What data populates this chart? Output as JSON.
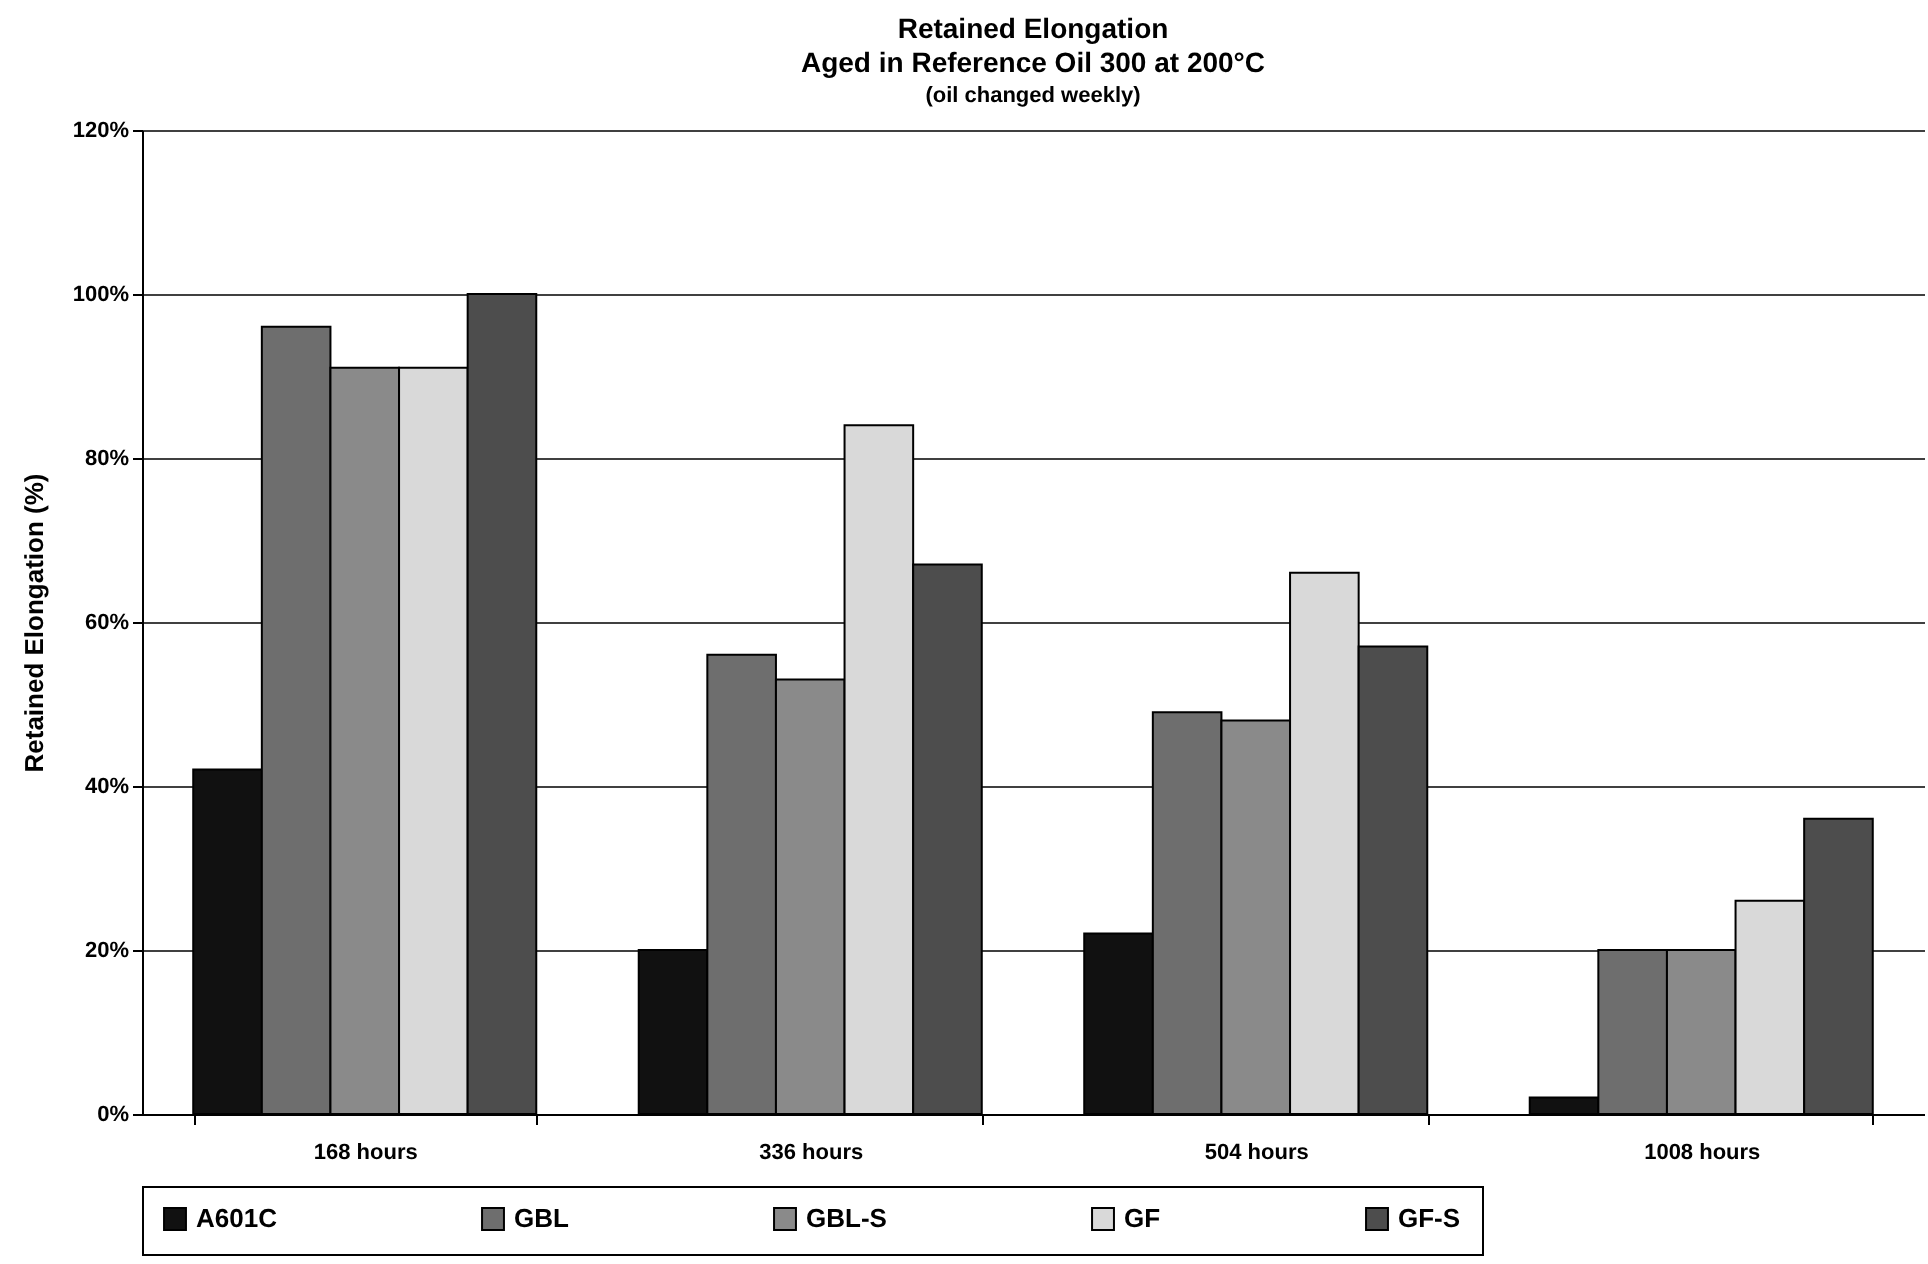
{
  "chart_data": {
    "type": "bar",
    "title": "Retained Elongation\nAged in Reference Oil 300 at 200°C",
    "subtitle": "(oil changed weekly)",
    "ylabel": "Retained Elongation (%)",
    "categories": [
      "168 hours",
      "336 hours",
      "504 hours",
      "1008 hours"
    ],
    "series": [
      {
        "name": "A601C",
        "color": "#111111",
        "values": [
          42,
          20,
          22,
          2
        ]
      },
      {
        "name": "GBL",
        "color": "#6e6e6e",
        "values": [
          96,
          56,
          49,
          20
        ]
      },
      {
        "name": "GBL-S",
        "color": "#8a8a8a",
        "values": [
          91,
          53,
          48,
          20
        ]
      },
      {
        "name": "GF",
        "color": "#d9d9d9",
        "values": [
          91,
          84,
          66,
          26
        ]
      },
      {
        "name": "GF-S",
        "color": "#4d4d4d",
        "values": [
          100,
          67,
          57,
          36
        ]
      }
    ],
    "ylim": [
      0,
      120
    ],
    "yticks": [
      {
        "value": 0,
        "label": "0%"
      },
      {
        "value": 20,
        "label": "20%"
      },
      {
        "value": 40,
        "label": "40%"
      },
      {
        "value": 60,
        "label": "60%"
      },
      {
        "value": 80,
        "label": "80%"
      },
      {
        "value": 100,
        "label": "100%"
      },
      {
        "value": 120,
        "label": "120%"
      }
    ],
    "grid": "y",
    "legend": "bottom"
  }
}
